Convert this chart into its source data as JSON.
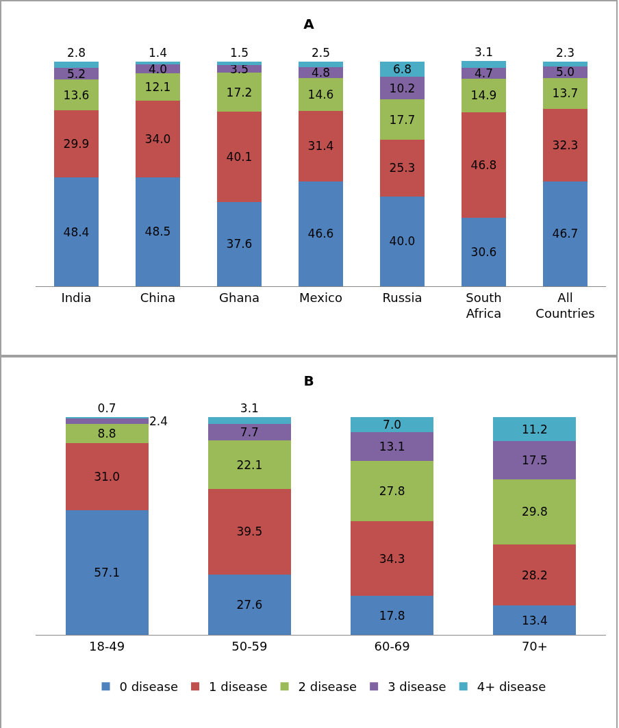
{
  "chart_data": [
    {
      "type": "bar",
      "title": "A",
      "categories": [
        "India",
        "China",
        "Ghana",
        "Mexico",
        "Russia",
        "South Africa",
        "All Countries"
      ],
      "stacked": true,
      "grid": false,
      "legend": false,
      "series": [
        {
          "color": "#4f81bd",
          "values": [
            48.4,
            48.5,
            37.6,
            46.6,
            40.0,
            30.6,
            46.7
          ],
          "value_labels": [
            "48.4",
            "48.5",
            "37.6",
            "46.6",
            "40.0",
            "30.6",
            "46.7"
          ]
        },
        {
          "color": "#c0504d",
          "values": [
            29.9,
            34.0,
            40.1,
            31.4,
            25.3,
            46.8,
            32.3
          ],
          "value_labels": [
            "29.9",
            "34.0",
            "40.1",
            "31.4",
            "25.3",
            "46.8",
            "32.3"
          ]
        },
        {
          "color": "#9bbb59",
          "values": [
            13.6,
            12.1,
            17.2,
            14.6,
            17.7,
            14.9,
            13.7
          ],
          "value_labels": [
            "13.6",
            "12.1",
            "17.2",
            "14.6",
            "17.7",
            "14.9",
            "13.7"
          ]
        },
        {
          "color": "#8064a2",
          "values": [
            5.2,
            4.0,
            3.5,
            4.8,
            10.2,
            4.7,
            5.0
          ],
          "value_labels": [
            "5.2",
            "4.0",
            "3.5",
            "4.8",
            "10.2",
            "4.7",
            "5.0"
          ]
        },
        {
          "color": "#4bacc6",
          "values": [
            2.8,
            1.4,
            1.5,
            2.5,
            6.8,
            3.1,
            2.3
          ],
          "value_labels": [
            "2.8",
            "1.4",
            "1.5",
            "2.5",
            "6.8",
            "3.1",
            "2.3"
          ]
        }
      ]
    },
    {
      "type": "bar",
      "title": "B",
      "categories": [
        "18-49",
        "50-59",
        "60-69",
        "70+"
      ],
      "stacked": true,
      "grid": false,
      "legend": "bottom",
      "series": [
        {
          "name": "0 disease",
          "color": "#4f81bd",
          "values": [
            57.1,
            27.6,
            17.8,
            13.4
          ],
          "value_labels": [
            "57.1",
            "27.6",
            "17.8",
            "13.4"
          ]
        },
        {
          "name": "1 disease",
          "color": "#c0504d",
          "values": [
            31.0,
            39.5,
            34.3,
            28.2
          ],
          "value_labels": [
            "31.0",
            "39.5",
            "34.3",
            "28.2"
          ]
        },
        {
          "name": "2 disease",
          "color": "#9bbb59",
          "values": [
            8.8,
            22.1,
            27.8,
            29.8
          ],
          "value_labels": [
            "8.8",
            "22.1",
            "27.8",
            "29.8"
          ]
        },
        {
          "name": "3 disease",
          "color": "#8064a2",
          "values": [
            2.4,
            7.7,
            13.1,
            17.5
          ],
          "value_labels": [
            "2.4",
            "7.7",
            "13.1",
            "17.5"
          ]
        },
        {
          "name": "4+ disease",
          "color": "#4bacc6",
          "values": [
            0.7,
            3.1,
            7.0,
            11.2
          ],
          "value_labels": [
            "0.7",
            "3.1",
            "7.0",
            "11.2"
          ]
        }
      ]
    }
  ]
}
